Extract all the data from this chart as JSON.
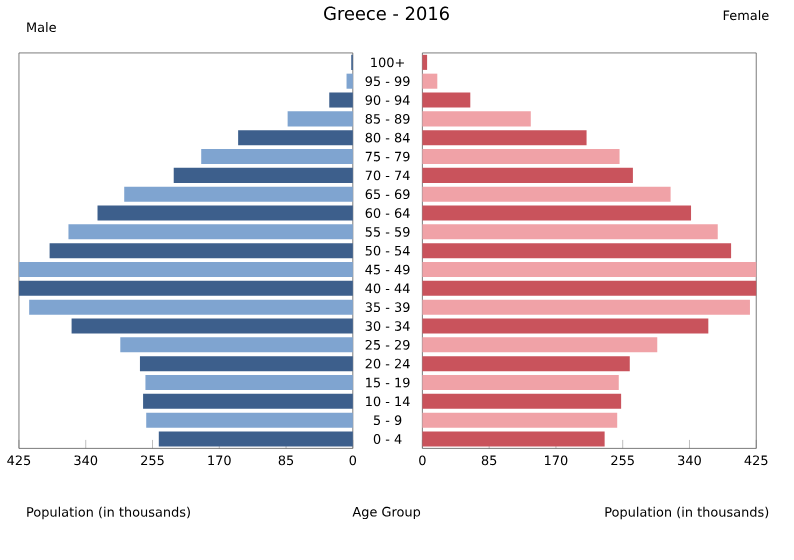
{
  "chart_data": [
    {
      "type": "bar",
      "orientation": "horizontal",
      "title": "Greece - 2016",
      "subtitle": "Male",
      "xlabel": "Population (in thousands)",
      "ylabel": "Age Group",
      "categories": [
        "100+",
        "95 - 99",
        "90 - 94",
        "85 - 89",
        "80 - 84",
        "75 - 79",
        "70 - 74",
        "65 - 69",
        "60 - 64",
        "55 - 59",
        "50 - 54",
        "45 - 49",
        "40 - 44",
        "35 - 39",
        "30 - 34",
        "25 - 29",
        "20 - 24",
        "15 - 19",
        "10 - 14",
        "5 - 9",
        "0 - 4"
      ],
      "values": [
        2,
        8,
        30,
        83,
        146,
        193,
        228,
        291,
        325,
        362,
        386,
        425,
        425,
        412,
        358,
        296,
        271,
        264,
        267,
        263,
        247
      ],
      "colors": [
        "#3d5f8c",
        "#7fa4d0",
        "#3d5f8c",
        "#7fa4d0",
        "#3d5f8c",
        "#7fa4d0",
        "#3d5f8c",
        "#7fa4d0",
        "#3d5f8c",
        "#7fa4d0",
        "#3d5f8c",
        "#7fa4d0",
        "#3d5f8c",
        "#7fa4d0",
        "#3d5f8c",
        "#7fa4d0",
        "#3d5f8c",
        "#7fa4d0",
        "#3d5f8c",
        "#7fa4d0",
        "#3d5f8c"
      ],
      "xlim": [
        425,
        0
      ],
      "xticks": [
        425,
        340,
        255,
        170,
        85,
        0
      ]
    },
    {
      "type": "bar",
      "orientation": "horizontal",
      "title": "Female",
      "xlabel": "Population (in thousands)",
      "tick_labels": "x",
      "categories": [
        null,
        null,
        null,
        null,
        null,
        null,
        null,
        null,
        null,
        null,
        null,
        null,
        null,
        null,
        null,
        null,
        null,
        null,
        null,
        null,
        null
      ],
      "values": [
        6,
        19,
        61,
        138,
        209,
        251,
        268,
        316,
        342,
        376,
        393,
        425,
        425,
        417,
        364,
        299,
        264,
        250,
        253,
        248,
        232
      ],
      "colors": [
        "#c9535c",
        "#f0a2a7",
        "#c9535c",
        "#f0a2a7",
        "#c9535c",
        "#f0a2a7",
        "#c9535c",
        "#f0a2a7",
        "#c9535c",
        "#f0a2a7",
        "#c9535c",
        "#f0a2a7",
        "#c9535c",
        "#f0a2a7",
        "#c9535c",
        "#f0a2a7",
        "#c9535c",
        "#f0a2a7",
        "#c9535c",
        "#f0a2a7",
        "#c9535c"
      ],
      "xlim": [
        0,
        425
      ],
      "xticks": [
        0,
        85,
        170,
        255,
        340,
        425
      ]
    }
  ]
}
